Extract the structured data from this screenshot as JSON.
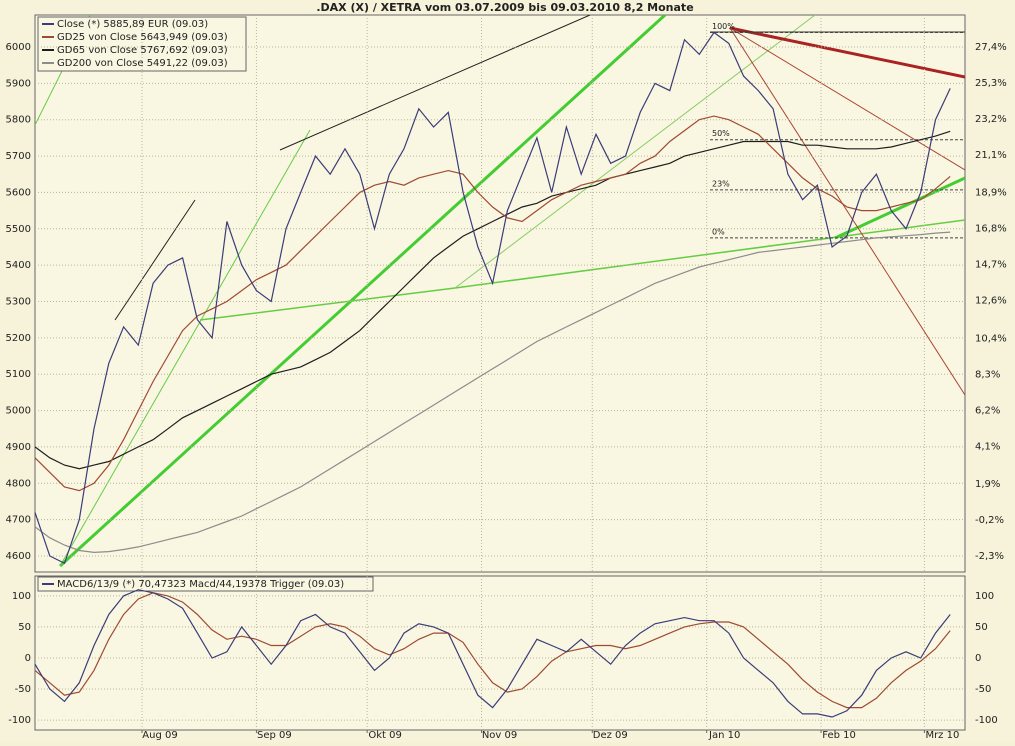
{
  "chart_data": [
    {
      "type": "line",
      "title": ".DAX (X) / XETRA vom 03.07.2009 bis 09.03.2010 8,2 Monate",
      "x": [
        0,
        4,
        8,
        12,
        16,
        20,
        24,
        28,
        32,
        36,
        40,
        44,
        48,
        52,
        56,
        60,
        64,
        68,
        72,
        76,
        80,
        84,
        88,
        92,
        96,
        100,
        104,
        108,
        112,
        116,
        120,
        124,
        128,
        132,
        136,
        140,
        144,
        148,
        152,
        156,
        160,
        164,
        168,
        172,
        176,
        180,
        184,
        188,
        192,
        196,
        200,
        204,
        208,
        212,
        216,
        220,
        224,
        228,
        232,
        236,
        240,
        244,
        248
      ],
      "xlim": [
        0,
        252
      ],
      "ylim": [
        4556,
        6088
      ],
      "yticks": [
        4600,
        4700,
        4800,
        4900,
        5000,
        5100,
        5200,
        5300,
        5400,
        5500,
        5600,
        5700,
        5800,
        5900,
        6000
      ],
      "y2lim": [
        -3.23,
        29.27
      ],
      "y2ticks": [
        {
          "value": 27.4,
          "label": "27,4%"
        },
        {
          "value": 25.3,
          "label": "25,3%"
        },
        {
          "value": 23.2,
          "label": "23,2%"
        },
        {
          "value": 21.1,
          "label": "21,1%"
        },
        {
          "value": 18.9,
          "label": "18,9%"
        },
        {
          "value": 16.8,
          "label": "16,8%"
        },
        {
          "value": 14.7,
          "label": "14,7%"
        },
        {
          "value": 12.6,
          "label": "12,6%"
        },
        {
          "value": 10.4,
          "label": "10,4%"
        },
        {
          "value": 8.3,
          "label": "8,3%"
        },
        {
          "value": 6.2,
          "label": "6,2%"
        },
        {
          "value": 4.1,
          "label": "4,1%"
        },
        {
          "value": 1.9,
          "label": "1,9%"
        },
        {
          "value": -0.2,
          "label": "-0,2%"
        },
        {
          "value": -2.3,
          "label": "-2,3%"
        }
      ],
      "grid": true,
      "series": [
        {
          "name": "Close (*) 5885,89 EUR (09.03)",
          "color": "#3c3c78",
          "values": [
            4720,
            4600,
            4580,
            4700,
            4950,
            5130,
            5230,
            5180,
            5350,
            5400,
            5420,
            5250,
            5200,
            5520,
            5400,
            5330,
            5300,
            5500,
            5600,
            5700,
            5650,
            5720,
            5650,
            5500,
            5650,
            5720,
            5830,
            5780,
            5820,
            5600,
            5450,
            5350,
            5550,
            5650,
            5750,
            5600,
            5780,
            5650,
            5760,
            5680,
            5700,
            5820,
            5900,
            5880,
            6020,
            5980,
            6040,
            6010,
            5920,
            5880,
            5830,
            5650,
            5580,
            5620,
            5450,
            5480,
            5600,
            5650,
            5550,
            5500,
            5600,
            5800,
            5886
          ]
        },
        {
          "name": "GD25 von Close 5643,949 (09.03)",
          "color": "#a04a32",
          "values": [
            4870,
            4830,
            4790,
            4780,
            4800,
            4850,
            4920,
            5000,
            5080,
            5150,
            5220,
            5260,
            5280,
            5300,
            5330,
            5360,
            5380,
            5400,
            5440,
            5480,
            5520,
            5560,
            5600,
            5620,
            5630,
            5620,
            5640,
            5650,
            5660,
            5650,
            5600,
            5560,
            5530,
            5520,
            5550,
            5580,
            5600,
            5620,
            5630,
            5640,
            5650,
            5680,
            5700,
            5740,
            5770,
            5800,
            5810,
            5800,
            5780,
            5760,
            5720,
            5680,
            5640,
            5610,
            5590,
            5560,
            5550,
            5550,
            5560,
            5570,
            5580,
            5610,
            5644
          ]
        },
        {
          "name": "GD65 von Close 5767,692 (09.03)",
          "color": "#1e1e1e",
          "values": [
            4900,
            4870,
            4850,
            4840,
            4850,
            4860,
            4880,
            4900,
            4920,
            4950,
            4980,
            5000,
            5020,
            5040,
            5060,
            5080,
            5100,
            5110,
            5120,
            5140,
            5160,
            5190,
            5220,
            5260,
            5300,
            5340,
            5380,
            5420,
            5450,
            5480,
            5500,
            5520,
            5540,
            5560,
            5570,
            5590,
            5600,
            5610,
            5620,
            5640,
            5650,
            5660,
            5670,
            5680,
            5700,
            5710,
            5720,
            5730,
            5740,
            5740,
            5740,
            5740,
            5730,
            5730,
            5725,
            5720,
            5720,
            5720,
            5725,
            5735,
            5745,
            5755,
            5768
          ]
        },
        {
          "name": "GD200 von Close 5491,22 (09.03)",
          "color": "#8c8c8c",
          "values": [
            4680,
            4650,
            4630,
            4615,
            4610,
            4612,
            4618,
            4625,
            4635,
            4645,
            4655,
            4665,
            4680,
            4695,
            4710,
            4730,
            4750,
            4770,
            4790,
            4815,
            4840,
            4865,
            4890,
            4915,
            4940,
            4965,
            4990,
            5015,
            5040,
            5065,
            5090,
            5115,
            5140,
            5165,
            5190,
            5210,
            5230,
            5250,
            5270,
            5290,
            5310,
            5330,
            5350,
            5365,
            5380,
            5395,
            5405,
            5415,
            5425,
            5435,
            5440,
            5445,
            5450,
            5455,
            5460,
            5465,
            5470,
            5475,
            5478,
            5481,
            5484,
            5488,
            5491
          ]
        }
      ],
      "fib_levels": [
        {
          "label": "100%",
          "value": 6040
        },
        {
          "label": "50%",
          "value": 5745
        },
        {
          "label": "23%",
          "value": 5607
        },
        {
          "label": "0%",
          "value": 5475
        }
      ]
    },
    {
      "type": "line",
      "legend": "MACD6/13/9 (*) 70,47323 Macd/44,19378 Trigger (09.03)",
      "x": [
        0,
        4,
        8,
        12,
        16,
        20,
        24,
        28,
        32,
        36,
        40,
        44,
        48,
        52,
        56,
        60,
        64,
        68,
        72,
        76,
        80,
        84,
        88,
        92,
        96,
        100,
        104,
        108,
        112,
        116,
        120,
        124,
        128,
        132,
        136,
        140,
        144,
        148,
        152,
        156,
        160,
        164,
        168,
        172,
        176,
        180,
        184,
        188,
        192,
        196,
        200,
        204,
        208,
        212,
        216,
        220,
        224,
        228,
        232,
        236,
        240,
        244,
        248
      ],
      "xlim": [
        0,
        252
      ],
      "xticks": [
        {
          "value": 29,
          "label": "Aug 09"
        },
        {
          "value": 60,
          "label": "Sep 09"
        },
        {
          "value": 90,
          "label": "Okt 09"
        },
        {
          "value": 121,
          "label": "Nov 09"
        },
        {
          "value": 151,
          "label": "Dez 09"
        },
        {
          "value": 182,
          "label": "Jan 10"
        },
        {
          "value": 213,
          "label": "Feb 10"
        },
        {
          "value": 241,
          "label": "Mrz 10"
        }
      ],
      "ylim": [
        -116,
        132
      ],
      "yticks": [
        -100,
        -50,
        0,
        50,
        100
      ],
      "grid": true,
      "series": [
        {
          "color": "#3c3c78",
          "values": [
            -10,
            -50,
            -70,
            -40,
            20,
            70,
            100,
            110,
            105,
            95,
            80,
            40,
            0,
            10,
            50,
            20,
            -10,
            20,
            60,
            70,
            50,
            40,
            10,
            -20,
            0,
            40,
            55,
            50,
            40,
            -10,
            -60,
            -80,
            -50,
            -10,
            30,
            20,
            10,
            30,
            10,
            -10,
            20,
            40,
            55,
            60,
            65,
            60,
            60,
            40,
            0,
            -20,
            -40,
            -70,
            -90,
            -90,
            -95,
            -85,
            -60,
            -20,
            0,
            10,
            0,
            40,
            70
          ]
        },
        {
          "color": "#a04a32",
          "values": [
            -20,
            -40,
            -60,
            -55,
            -20,
            30,
            70,
            95,
            105,
            100,
            90,
            70,
            45,
            30,
            35,
            30,
            20,
            20,
            35,
            50,
            55,
            50,
            35,
            15,
            5,
            15,
            30,
            40,
            40,
            25,
            -10,
            -40,
            -55,
            -50,
            -30,
            -5,
            10,
            15,
            20,
            20,
            15,
            20,
            30,
            40,
            50,
            55,
            58,
            58,
            50,
            30,
            10,
            -10,
            -35,
            -55,
            -70,
            -80,
            -80,
            -65,
            -40,
            -20,
            -5,
            15,
            44
          ]
        }
      ]
    }
  ]
}
